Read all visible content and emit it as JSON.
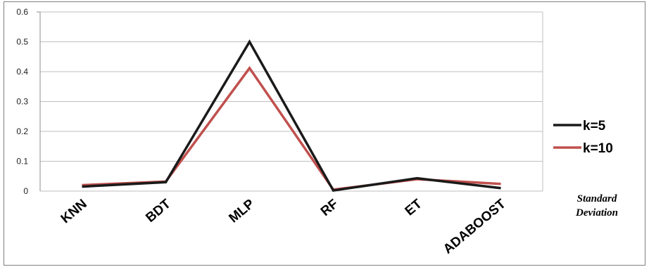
{
  "chart_data": {
    "type": "line",
    "categories": [
      "KNN",
      "BDT",
      "MLP",
      "RF",
      "ET",
      "ADABOOST"
    ],
    "series": [
      {
        "name": "k=5",
        "color": "#1a1a1a",
        "values": [
          0.015,
          0.03,
          0.5,
          0.002,
          0.043,
          0.01
        ]
      },
      {
        "name": "k=10",
        "color": "#c0504d",
        "values": [
          0.02,
          0.032,
          0.412,
          0.005,
          0.04,
          0.024
        ]
      }
    ],
    "ylim": [
      0,
      0.6
    ],
    "yticks": [
      "0",
      "0.1",
      "0.2",
      "0.3",
      "0.4",
      "0.5",
      "0.6"
    ],
    "grid": true,
    "legend_position": "right",
    "caption_lines": [
      "Standard",
      "Deviation"
    ]
  }
}
